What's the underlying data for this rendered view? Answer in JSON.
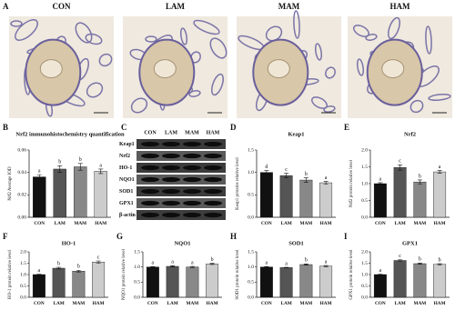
{
  "panel_a": {
    "label": "A",
    "images": [
      {
        "label": "CON"
      },
      {
        "label": "LAM"
      },
      {
        "label": "MAM"
      },
      {
        "label": "HAM"
      }
    ]
  },
  "panel_c": {
    "label": "C",
    "columns": [
      "CON",
      "LAM",
      "MAM",
      "HAM"
    ],
    "rows": [
      "Keap1",
      "Nrf2",
      "HO-1",
      "NQO1",
      "SOD1",
      "GPX1",
      "β-actin"
    ]
  },
  "chart_data": [
    {
      "type": "bar",
      "label": "B",
      "title": "Nrf2 immunohistochemistry quantification",
      "ylabel": "Nrf2 Average IOD",
      "categories": [
        "CON",
        "LAM",
        "MAM",
        "HAM"
      ],
      "values": [
        0.036,
        0.043,
        0.045,
        0.041
      ],
      "errors": [
        0.002,
        0.003,
        0.003,
        0.002
      ],
      "letters": [
        "a",
        "b",
        "b",
        "a"
      ],
      "colors": [
        "#111111",
        "#555555",
        "#888888",
        "#cccccc"
      ],
      "ylim": [
        0,
        0.06
      ],
      "yticks": [
        {
          "value": 0,
          "label": "0.00"
        },
        {
          "value": 0.02,
          "label": "0.02"
        },
        {
          "value": 0.04,
          "label": "0.04"
        },
        {
          "value": 0.06,
          "label": "0.06"
        }
      ]
    },
    {
      "type": "bar",
      "label": "D",
      "title": "Keap1",
      "ylabel": "Keap1 proteins relative level",
      "categories": [
        "CON",
        "LAM",
        "MAM",
        "HAM"
      ],
      "values": [
        1.0,
        0.93,
        0.83,
        0.77
      ],
      "errors": [
        0.04,
        0.05,
        0.05,
        0.03
      ],
      "letters": [
        "d",
        "c",
        "b",
        "a"
      ],
      "colors": [
        "#111111",
        "#555555",
        "#888888",
        "#cccccc"
      ],
      "ylim": [
        0,
        1.5
      ],
      "yticks": [
        {
          "value": 0,
          "label": "0.0"
        },
        {
          "value": 0.5,
          "label": "0.5"
        },
        {
          "value": 1,
          "label": "1.0"
        },
        {
          "value": 1.5,
          "label": "1.5"
        }
      ]
    },
    {
      "type": "bar",
      "label": "E",
      "title": "Nrf2",
      "ylabel": "Nrf2 protein relative level",
      "categories": [
        "CON",
        "LAM",
        "MAM",
        "HAM"
      ],
      "values": [
        1.0,
        1.48,
        1.05,
        1.35
      ],
      "errors": [
        0.03,
        0.08,
        0.06,
        0.04
      ],
      "letters": [
        "a",
        "c",
        "b",
        "a"
      ],
      "colors": [
        "#111111",
        "#555555",
        "#888888",
        "#cccccc"
      ],
      "ylim": [
        0,
        2
      ],
      "yticks": [
        {
          "value": 0,
          "label": "0.0"
        },
        {
          "value": 0.5,
          "label": "0.5"
        },
        {
          "value": 1,
          "label": "1.0"
        },
        {
          "value": 1.5,
          "label": "1.5"
        },
        {
          "value": 2,
          "label": "2.0"
        }
      ]
    },
    {
      "type": "bar",
      "label": "F",
      "title": "HO-1",
      "ylabel": "HO-1 protein relative level",
      "categories": [
        "CON",
        "LAM",
        "MAM",
        "HAM"
      ],
      "values": [
        1.0,
        1.28,
        1.15,
        1.55
      ],
      "errors": [
        0.02,
        0.04,
        0.04,
        0.05
      ],
      "letters": [
        "a",
        "b",
        "b",
        "c"
      ],
      "colors": [
        "#111111",
        "#555555",
        "#888888",
        "#cccccc"
      ],
      "ylim": [
        0,
        2
      ],
      "yticks": [
        {
          "value": 0,
          "label": "0.0"
        },
        {
          "value": 0.5,
          "label": "0.5"
        },
        {
          "value": 1,
          "label": "1.0"
        },
        {
          "value": 1.5,
          "label": "1.5"
        },
        {
          "value": 2,
          "label": "2.0"
        }
      ]
    },
    {
      "type": "bar",
      "label": "G",
      "title": "NQO1",
      "ylabel": "NQO1 protein relative level",
      "categories": [
        "CON",
        "LAM",
        "MAM",
        "HAM"
      ],
      "values": [
        1.0,
        1.02,
        1.0,
        1.1
      ],
      "errors": [
        0.01,
        0.02,
        0.02,
        0.02
      ],
      "letters": [
        "a",
        "a",
        "a",
        "b"
      ],
      "colors": [
        "#111111",
        "#555555",
        "#888888",
        "#cccccc"
      ],
      "ylim": [
        0,
        1.5
      ],
      "yticks": [
        {
          "value": 0,
          "label": "0.0"
        },
        {
          "value": 0.5,
          "label": "0.5"
        },
        {
          "value": 1,
          "label": "1.0"
        },
        {
          "value": 1.5,
          "label": "1.5"
        }
      ]
    },
    {
      "type": "bar",
      "label": "H",
      "title": "SOD1",
      "ylabel": "SOD1 protein relative level",
      "categories": [
        "CON",
        "LAM",
        "MAM",
        "HAM"
      ],
      "values": [
        1.0,
        0.98,
        1.08,
        1.03
      ],
      "errors": [
        0.01,
        0.01,
        0.02,
        0.02
      ],
      "letters": [
        "a",
        "a",
        "b",
        "a"
      ],
      "colors": [
        "#111111",
        "#555555",
        "#888888",
        "#cccccc"
      ],
      "ylim": [
        0,
        1.5
      ],
      "yticks": [
        {
          "value": 0,
          "label": "0.0"
        },
        {
          "value": 0.5,
          "label": "0.5"
        },
        {
          "value": 1,
          "label": "1.0"
        },
        {
          "value": 1.5,
          "label": "1.5"
        }
      ]
    },
    {
      "type": "bar",
      "label": "I",
      "title": "GPX1",
      "ylabel": "GPX1 protein relative level",
      "categories": [
        "CON",
        "LAM",
        "MAM",
        "HAM"
      ],
      "values": [
        1.0,
        1.62,
        1.48,
        1.45
      ],
      "errors": [
        0.02,
        0.03,
        0.03,
        0.03
      ],
      "letters": [
        "a",
        "c",
        "b",
        "b"
      ],
      "colors": [
        "#111111",
        "#555555",
        "#888888",
        "#cccccc"
      ],
      "ylim": [
        0,
        2
      ],
      "yticks": [
        {
          "value": 0,
          "label": "0.0"
        },
        {
          "value": 0.5,
          "label": "0.5"
        },
        {
          "value": 1,
          "label": "1.0"
        },
        {
          "value": 1.5,
          "label": "1.5"
        },
        {
          "value": 2,
          "label": "2.0"
        }
      ]
    }
  ]
}
